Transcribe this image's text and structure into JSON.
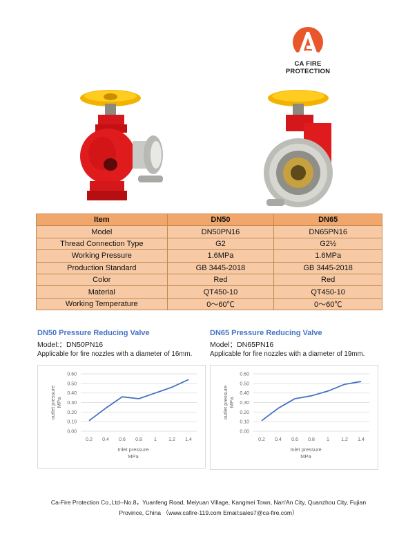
{
  "company": {
    "logo_name": "CA FIRE PROTECTION",
    "brand_color": "#e8562a"
  },
  "spec_table": {
    "headers": [
      "Item",
      "DN50",
      "DN65"
    ],
    "rows": [
      [
        "Model",
        "DN50PN16",
        "DN65PN16"
      ],
      [
        "Thread Connection Type",
        "G2",
        "G2½"
      ],
      [
        "Working Pressure",
        "1.6MPa",
        "1.6MPa"
      ],
      [
        "Production Standard",
        "GB 3445-2018",
        "GB 3445-2018"
      ],
      [
        "Color",
        "Red",
        "Red"
      ],
      [
        "Material",
        "QT450-10",
        "QT450-10"
      ],
      [
        "Working Temperature",
        "0～60℃",
        "0～60℃"
      ]
    ]
  },
  "valves": [
    {
      "title": "DN50 Pressure Reducing Valve",
      "model": "Model:：DN50PN16",
      "application": "Applicable for fire nozzles with a diameter of 16mm."
    },
    {
      "title": "DN65 Pressure Reducing Valve",
      "model": "Model：DN65PN16",
      "application": "Applicable for fire nozzles with a diameter of 19mm."
    }
  ],
  "chart_data": [
    {
      "type": "line",
      "title": "",
      "xlabel": "Inlet pressure MPa",
      "ylabel": "outlet pressure MPa",
      "x": [
        0.2,
        0.4,
        0.6,
        0.8,
        1.0,
        1.2,
        1.4
      ],
      "x_tick_labels": [
        "0.2",
        "0.4",
        "0.6",
        "0.8",
        "1",
        "1.2",
        "1.4"
      ],
      "y": [
        0.11,
        0.24,
        0.36,
        0.34,
        0.4,
        0.46,
        0.54
      ],
      "y_tick_labels": [
        "0.00",
        "0.10",
        "0.20",
        "0.30",
        "0.40",
        "0.50",
        "0.60"
      ],
      "ylim": [
        0,
        0.6
      ],
      "grid": true,
      "line_color": "#4472c4"
    },
    {
      "type": "line",
      "title": "",
      "xlabel": "Inlet pressure MPa",
      "ylabel": "outlet pressure MPa",
      "x": [
        0.2,
        0.4,
        0.6,
        0.8,
        1.0,
        1.2,
        1.4
      ],
      "x_tick_labels": [
        "0.2",
        "0.4",
        "0.6",
        "0.8",
        "1",
        "1.2",
        "1.4"
      ],
      "y": [
        0.11,
        0.24,
        0.34,
        0.37,
        0.42,
        0.49,
        0.52
      ],
      "y_tick_labels": [
        "0.00",
        "0.10",
        "0.20",
        "0.30",
        "0.40",
        "0.50",
        "0.60"
      ],
      "ylim": [
        0,
        0.6
      ],
      "grid": true,
      "line_color": "#4472c4"
    }
  ],
  "footer": {
    "line1": "Ca-Fire Protection Co.,Ltd--No.8，Yuanfeng Road, Meiyuan Village, Kangmei Town, Nan'An City, Quanzhou City, Fujian",
    "line2": "Province, China （www.cafire-119.com Email:sales7@ca-fire.com）"
  }
}
